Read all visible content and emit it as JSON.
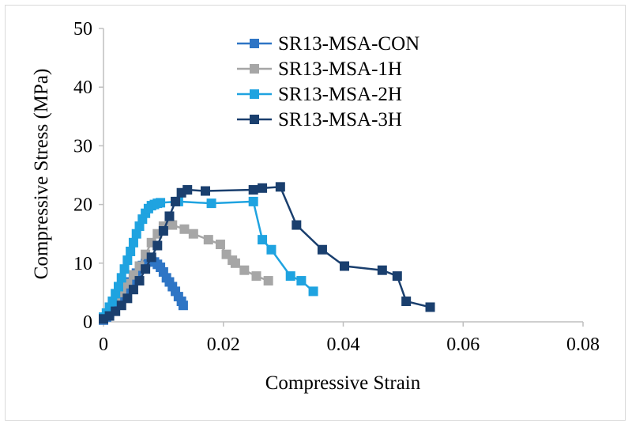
{
  "chart_data": {
    "type": "scatter",
    "title": "",
    "xlabel": "Compressive Strain",
    "ylabel": "Compressive Stress (MPa)",
    "xlim": [
      0,
      0.08
    ],
    "ylim": [
      0,
      50
    ],
    "xticks": [
      0,
      0.02,
      0.04,
      0.06,
      0.08
    ],
    "xtick_labels": [
      "0",
      "0.02",
      "0.04",
      "0.06",
      "0.08"
    ],
    "yticks": [
      0,
      10,
      20,
      30,
      40,
      50
    ],
    "ytick_labels": [
      "0",
      "10",
      "20",
      "30",
      "40",
      "50"
    ],
    "grid": false,
    "legend_position": "top-center",
    "series": [
      {
        "name": "SR13-MSA-CON",
        "color": "#2e75c5",
        "x": [
          0,
          0.0005,
          0.001,
          0.0015,
          0.002,
          0.0025,
          0.003,
          0.0035,
          0.004,
          0.0045,
          0.005,
          0.0055,
          0.006,
          0.0065,
          0.007,
          0.0075,
          0.008,
          0.0085,
          0.009,
          0.0095,
          0.01,
          0.0105,
          0.011,
          0.0115,
          0.012,
          0.0125,
          0.013,
          0.0133
        ],
        "y": [
          0.3,
          0.8,
          1.5,
          2.2,
          3.0,
          3.8,
          4.5,
          5.3,
          6.0,
          6.8,
          7.5,
          8.3,
          9.0,
          9.6,
          10.0,
          10.2,
          10.3,
          10.2,
          9.8,
          9.3,
          8.5,
          7.5,
          6.8,
          6.0,
          5.2,
          4.3,
          3.5,
          2.8
        ]
      },
      {
        "name": "SR13-MSA-1H",
        "color": "#a6a6a6",
        "x": [
          0,
          0.001,
          0.002,
          0.003,
          0.004,
          0.005,
          0.006,
          0.007,
          0.008,
          0.009,
          0.01,
          0.011,
          0.0115,
          0.0135,
          0.015,
          0.0175,
          0.0195,
          0.0205,
          0.0215,
          0.022,
          0.0235,
          0.0255,
          0.0275
        ],
        "y": [
          0.5,
          2.0,
          3.5,
          5.0,
          6.5,
          8.0,
          9.5,
          11.5,
          13.5,
          15.0,
          16.3,
          16.8,
          16.5,
          15.8,
          15.0,
          14.0,
          13.2,
          11.5,
          10.5,
          10.0,
          8.8,
          7.8,
          7.0
        ]
      },
      {
        "name": "SR13-MSA-2H",
        "color": "#1fa3e0",
        "x": [
          0,
          0.0005,
          0.001,
          0.0015,
          0.002,
          0.0025,
          0.003,
          0.0035,
          0.004,
          0.0045,
          0.005,
          0.0055,
          0.006,
          0.0065,
          0.007,
          0.0075,
          0.008,
          0.0085,
          0.009,
          0.0095,
          0.0125,
          0.018,
          0.025,
          0.0265,
          0.028,
          0.0312,
          0.033,
          0.035
        ],
        "y": [
          0.8,
          1.5,
          2.5,
          3.5,
          4.8,
          6.0,
          7.5,
          9.0,
          10.5,
          12.0,
          13.5,
          15.0,
          16.3,
          17.5,
          18.5,
          19.3,
          19.8,
          20.0,
          20.2,
          20.3,
          20.5,
          20.2,
          20.5,
          14.0,
          12.3,
          7.8,
          7.0,
          5.2
        ]
      },
      {
        "name": "SR13-MSA-3H",
        "color": "#1a3f6e",
        "x": [
          0,
          0.001,
          0.002,
          0.003,
          0.004,
          0.005,
          0.006,
          0.007,
          0.008,
          0.009,
          0.01,
          0.011,
          0.012,
          0.013,
          0.014,
          0.017,
          0.025,
          0.0265,
          0.0295,
          0.0322,
          0.0365,
          0.0402,
          0.0465,
          0.049,
          0.0505,
          0.0545
        ],
        "y": [
          0.5,
          1.0,
          1.8,
          2.8,
          4.0,
          5.5,
          7.0,
          9.0,
          11.0,
          13.0,
          15.5,
          18.0,
          20.5,
          22.0,
          22.5,
          22.3,
          22.5,
          22.8,
          23.0,
          16.5,
          12.3,
          9.5,
          8.8,
          7.8,
          3.5,
          2.5
        ]
      }
    ]
  }
}
